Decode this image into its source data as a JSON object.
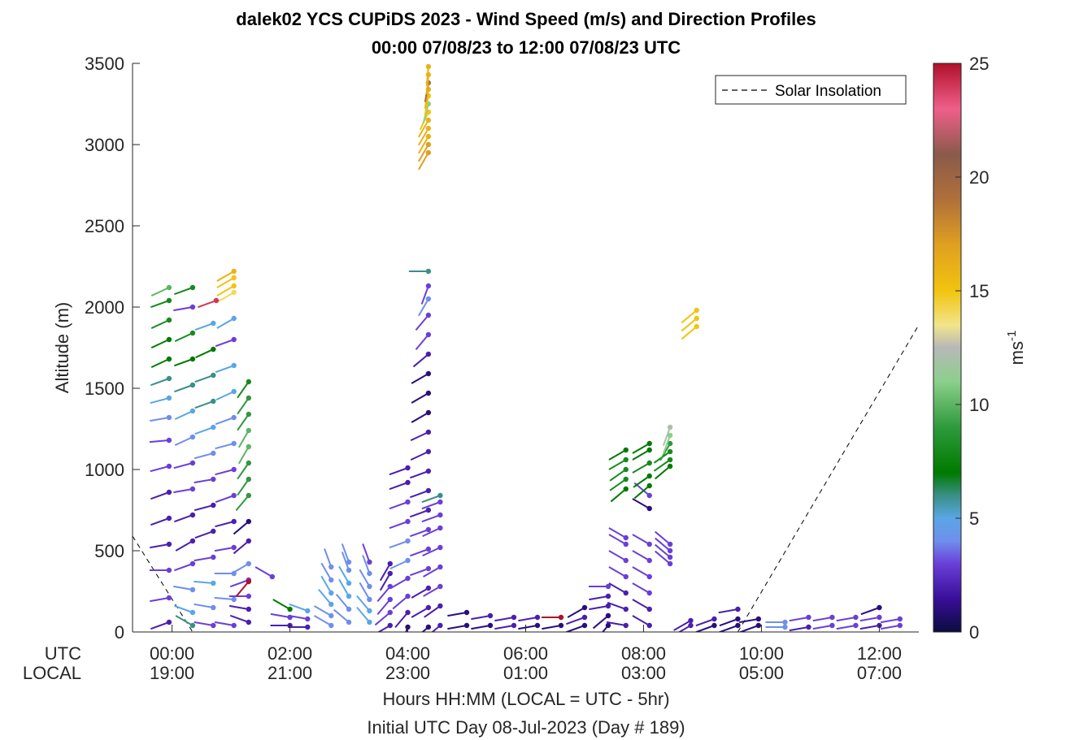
{
  "chart_data": {
    "type": "scatter",
    "title": "dalek02 YCS CUPiDS 2023 - Wind Speed (m/s) and Direction Profiles",
    "subtitle": "00:00 07/08/23 to 12:00 07/08/23  UTC",
    "xlabel": "Hours HH:MM  (LOCAL = UTC - 5hr)",
    "xlabel2": "Initial UTC Day 08-Jul-2023 (Day # 189)",
    "ylabel": "Altitude (m)",
    "ylim": [
      0,
      3500
    ],
    "xlim_hours": [
      -0.67,
      12.67
    ],
    "yticks": [
      0,
      500,
      1000,
      1500,
      2000,
      2500,
      3000,
      3500
    ],
    "xticks": [
      {
        "hour": 0,
        "utc": "00:00",
        "local": "19:00"
      },
      {
        "hour": 2,
        "utc": "02:00",
        "local": "21:00"
      },
      {
        "hour": 4,
        "utc": "04:00",
        "local": "23:00"
      },
      {
        "hour": 6,
        "utc": "06:00",
        "local": "01:00"
      },
      {
        "hour": 8,
        "utc": "08:00",
        "local": "03:00"
      },
      {
        "hour": 10,
        "utc": "10:00",
        "local": "05:00"
      },
      {
        "hour": 12,
        "utc": "12:00",
        "local": "07:00"
      }
    ],
    "row_labels": {
      "utc": "UTC",
      "local": "LOCAL"
    },
    "legend": {
      "entry": "Solar Insolation",
      "placement": "top-right"
    },
    "colorbar": {
      "label": "ms",
      "label_superscript": "-1",
      "range": [
        0,
        25
      ],
      "ticks": [
        0,
        5,
        10,
        15,
        20,
        25
      ],
      "stops": [
        {
          "v": 0,
          "c": "#0b0b3f"
        },
        {
          "v": 1.5,
          "c": "#3a0f9a"
        },
        {
          "v": 3,
          "c": "#6a3fd8"
        },
        {
          "v": 4,
          "c": "#6f8fec"
        },
        {
          "v": 5,
          "c": "#5aa6e6"
        },
        {
          "v": 6,
          "c": "#3a8f86"
        },
        {
          "v": 7,
          "c": "#007a00"
        },
        {
          "v": 9,
          "c": "#2e9a3c"
        },
        {
          "v": 11,
          "c": "#8bcf8b"
        },
        {
          "v": 12.5,
          "c": "#b8b8b8"
        },
        {
          "v": 13.5,
          "c": "#f2e58a"
        },
        {
          "v": 15,
          "c": "#f1c40f"
        },
        {
          "v": 17,
          "c": "#e0a020"
        },
        {
          "v": 19,
          "c": "#b0703a"
        },
        {
          "v": 21,
          "c": "#8a5a4a"
        },
        {
          "v": 23,
          "c": "#ef5f8a"
        },
        {
          "v": 25,
          "c": "#b0102a"
        }
      ]
    },
    "solar_insolation": {
      "style": "dashed",
      "segments": [
        [
          [
            -0.67,
            590
          ],
          [
            0.35,
            0
          ]
        ],
        [
          [
            9.6,
            0
          ],
          [
            12.67,
            1890
          ]
        ]
      ]
    },
    "profiles": [
      {
        "t": -0.05,
        "z": [
          60,
          210,
          380,
          540,
          700,
          860,
          1020,
          1180,
          1320,
          1440,
          1560,
          1680,
          1800,
          1920,
          2040,
          2120
        ],
        "s": [
          2,
          3,
          3,
          2,
          2,
          2,
          3,
          3,
          4,
          5,
          6,
          7,
          7,
          8,
          8,
          10
        ],
        "d": [
          250,
          260,
          270,
          260,
          250,
          250,
          255,
          265,
          260,
          255,
          250,
          245,
          245,
          245,
          250,
          245
        ]
      },
      {
        "t": 0.35,
        "z": [
          40,
          120,
          260,
          420,
          560,
          720,
          880,
          1040,
          1200,
          1360,
          1520,
          1680,
          1840,
          2000,
          2120
        ],
        "s": [
          6,
          5,
          4,
          3,
          2,
          2,
          3,
          3,
          4,
          5,
          6,
          7,
          8,
          3,
          8
        ],
        "d": [
          300,
          290,
          280,
          250,
          240,
          250,
          260,
          255,
          245,
          245,
          250,
          250,
          245,
          260,
          250
        ]
      },
      {
        "t": 0.7,
        "z": [
          40,
          150,
          300,
          460,
          620,
          780,
          940,
          1100,
          1260,
          1420,
          1580,
          1740,
          1900
        ],
        "s": [
          3,
          4,
          5,
          3,
          2,
          2,
          3,
          4,
          5,
          6,
          6,
          7,
          5
        ],
        "d": [
          280,
          280,
          275,
          260,
          250,
          255,
          260,
          255,
          250,
          250,
          250,
          245,
          250
        ]
      },
      {
        "t": 1.05,
        "z": [
          40,
          200,
          360,
          520,
          680,
          840,
          1000,
          1160,
          1320,
          1480,
          1640,
          1800,
          1930
        ],
        "s": [
          3,
          4,
          4,
          3,
          2,
          3,
          3,
          4,
          4,
          5,
          5,
          3,
          5
        ],
        "d": [
          280,
          275,
          270,
          260,
          255,
          250,
          255,
          255,
          250,
          245,
          250,
          250,
          240
        ]
      },
      {
        "t": 1.3,
        "z": [
          840,
          940,
          1040,
          1140,
          1240,
          1340,
          1440,
          1540
        ],
        "s": [
          9,
          9,
          9,
          10,
          10,
          9,
          9,
          8
        ],
        "d": [
          220,
          215,
          215,
          210,
          210,
          215,
          215,
          215
        ]
      },
      {
        "t": 1.3,
        "z": [
          60,
          140,
          220,
          320,
          420,
          560,
          680
        ],
        "s": [
          2,
          2,
          3,
          3,
          4,
          2,
          1
        ],
        "d": [
          290,
          280,
          270,
          250,
          240,
          230,
          230
        ]
      },
      {
        "t": 1.05,
        "z": [
          2090,
          2130,
          2180,
          2220
        ],
        "s": [
          14,
          15,
          15,
          16
        ],
        "d": [
          240,
          240,
          240,
          240
        ]
      },
      {
        "t": 0.75,
        "z": [
          2040
        ],
        "s": [
          24
        ],
        "d": [
          250
        ]
      },
      {
        "t": 1.3,
        "z": [
          310
        ],
        "s": [
          25
        ],
        "d": [
          220
        ]
      },
      {
        "t": 1.7,
        "z": [
          340
        ],
        "s": [
          3
        ],
        "d": [
          300
        ]
      },
      {
        "t": 2.0,
        "z": [
          40,
          90,
          140
        ],
        "s": [
          2,
          3,
          7
        ],
        "d": [
          270,
          280,
          300
        ]
      },
      {
        "t": 2.3,
        "z": [
          30,
          80,
          130
        ],
        "s": [
          2,
          3,
          5
        ],
        "d": [
          270,
          280,
          290
        ]
      },
      {
        "t": 2.7,
        "z": [
          40,
          100,
          170,
          240,
          320,
          400
        ],
        "s": [
          4,
          4,
          5,
          5,
          4,
          4
        ],
        "d": [
          300,
          300,
          320,
          330,
          330,
          340
        ]
      },
      {
        "t": 3.0,
        "z": [
          60,
          140,
          220,
          300,
          380,
          430
        ],
        "s": [
          4,
          4,
          5,
          5,
          4,
          4
        ],
        "d": [
          310,
          320,
          330,
          330,
          340,
          340
        ]
      },
      {
        "t": 3.35,
        "z": [
          60,
          130,
          200,
          280,
          360,
          430
        ],
        "s": [
          5,
          5,
          4,
          4,
          4,
          3
        ],
        "d": [
          320,
          320,
          330,
          330,
          340,
          340
        ]
      },
      {
        "t": 3.7,
        "z": [
          40,
          120,
          200,
          280,
          360,
          420
        ],
        "s": [
          2,
          3,
          3,
          3,
          2,
          2
        ],
        "d": [
          240,
          230,
          220,
          220,
          210,
          210
        ]
      },
      {
        "t": 4.0,
        "z": [
          30,
          120,
          220,
          330,
          440,
          560,
          680,
          800,
          920,
          1010
        ],
        "s": [
          1,
          2,
          3,
          3,
          4,
          4,
          3,
          3,
          2,
          2
        ],
        "d": [
          200,
          220,
          230,
          240,
          245,
          250,
          250,
          250,
          250,
          250
        ]
      },
      {
        "t": 4.35,
        "z": [
          30,
          150,
          270,
          390,
          510,
          630,
          750,
          870,
          990,
          1110,
          1230,
          1350,
          1470,
          1590,
          1710,
          1830,
          1950,
          2050,
          2130,
          2220
        ],
        "s": [
          1,
          2,
          2,
          3,
          3,
          3,
          2,
          2,
          2,
          2,
          2,
          1,
          1,
          1,
          2,
          3,
          3,
          4,
          3,
          6
        ],
        "d": [
          230,
          240,
          240,
          250,
          250,
          250,
          250,
          250,
          250,
          245,
          245,
          240,
          240,
          240,
          230,
          220,
          220,
          210,
          200,
          270
        ]
      },
      {
        "t": 4.35,
        "z": [
          2950,
          3000,
          3050,
          3100,
          3150,
          3200,
          3250,
          3300,
          3340,
          3380,
          3430,
          3480
        ],
        "s": [
          17,
          17,
          16,
          16,
          16,
          15,
          11,
          15,
          16,
          19,
          16,
          16
        ],
        "d": [
          210,
          210,
          210,
          210,
          210,
          205,
          195,
          190,
          190,
          190,
          185,
          185
        ]
      },
      {
        "t": 4.55,
        "z": [
          40,
          160,
          280,
          400,
          520,
          640,
          720,
          800,
          840
        ],
        "s": [
          2,
          2,
          3,
          3,
          3,
          3,
          3,
          3,
          6
        ],
        "d": [
          230,
          235,
          240,
          240,
          245,
          245,
          250,
          250,
          250
        ]
      },
      {
        "t": 5.0,
        "z": [
          40,
          120
        ],
        "s": [
          1,
          1
        ],
        "d": [
          260,
          260
        ]
      },
      {
        "t": 5.4,
        "z": [
          40,
          100
        ],
        "s": [
          1,
          2
        ],
        "d": [
          260,
          260
        ]
      },
      {
        "t": 5.8,
        "z": [
          40,
          90
        ],
        "s": [
          2,
          2
        ],
        "d": [
          260,
          260
        ]
      },
      {
        "t": 6.2,
        "z": [
          40,
          90
        ],
        "s": [
          1,
          2
        ],
        "d": [
          260,
          260
        ]
      },
      {
        "t": 6.6,
        "z": [
          40,
          90
        ],
        "s": [
          1,
          25
        ],
        "d": [
          260,
          270
        ]
      },
      {
        "t": 7.0,
        "z": [
          40,
          90,
          150
        ],
        "s": [
          1,
          2,
          1
        ],
        "d": [
          250,
          250,
          240
        ]
      },
      {
        "t": 7.4,
        "z": [
          40,
          100,
          160,
          220,
          280
        ],
        "s": [
          1,
          1,
          2,
          2,
          3
        ],
        "d": [
          220,
          230,
          260,
          260,
          270
        ]
      },
      {
        "t": 7.7,
        "z": [
          40,
          140,
          240,
          340,
          440,
          540,
          580
        ],
        "s": [
          2,
          2,
          2,
          3,
          3,
          3,
          3
        ],
        "d": [
          280,
          290,
          300,
          300,
          300,
          300,
          300
        ]
      },
      {
        "t": 7.7,
        "z": [
          880,
          940,
          1000,
          1060,
          1120
        ],
        "s": [
          7,
          8,
          8,
          8,
          7
        ],
        "d": [
          230,
          235,
          235,
          240,
          240
        ]
      },
      {
        "t": 8.1,
        "z": [
          40,
          140,
          240,
          340,
          440,
          540
        ],
        "s": [
          2,
          2,
          3,
          3,
          3,
          3
        ],
        "d": [
          300,
          300,
          300,
          300,
          300,
          300
        ]
      },
      {
        "t": 8.1,
        "z": [
          760,
          840,
          900,
          960,
          1040,
          1120,
          1160
        ],
        "s": [
          1,
          3,
          7,
          7,
          8,
          7,
          7
        ],
        "d": [
          300,
          310,
          230,
          235,
          240,
          240,
          240
        ]
      },
      {
        "t": 8.45,
        "z": [
          420,
          460,
          500,
          540
        ],
        "s": [
          3,
          3,
          3,
          3
        ],
        "d": [
          310,
          310,
          310,
          310
        ]
      },
      {
        "t": 8.45,
        "z": [
          1020,
          1060,
          1110,
          1160,
          1210,
          1260
        ],
        "s": [
          7,
          8,
          8,
          9,
          11,
          12
        ],
        "d": [
          230,
          235,
          235,
          210,
          200,
          200
        ]
      },
      {
        "t": 8.9,
        "z": [
          1880,
          1930,
          1980
        ],
        "s": [
          15,
          15,
          15
        ],
        "d": [
          230,
          230,
          230
        ]
      },
      {
        "t": 8.8,
        "z": [
          40,
          70
        ],
        "s": [
          2,
          2
        ],
        "d": [
          240,
          240
        ]
      },
      {
        "t": 9.2,
        "z": [
          40,
          80
        ],
        "s": [
          1,
          2
        ],
        "d": [
          250,
          250
        ]
      },
      {
        "t": 9.6,
        "z": [
          40,
          80,
          140
        ],
        "s": [
          1,
          1,
          2
        ],
        "d": [
          250,
          250,
          260
        ]
      },
      {
        "t": 9.95,
        "z": [
          40,
          80
        ],
        "s": [
          1,
          1
        ],
        "d": [
          250,
          260
        ]
      },
      {
        "t": 10.4,
        "z": [
          30,
          60
        ],
        "s": [
          4,
          4
        ],
        "d": [
          270,
          270
        ]
      },
      {
        "t": 10.8,
        "z": [
          30,
          90
        ],
        "s": [
          2,
          3
        ],
        "d": [
          260,
          260
        ]
      },
      {
        "t": 11.2,
        "z": [
          40,
          90
        ],
        "s": [
          3,
          3
        ],
        "d": [
          260,
          260
        ]
      },
      {
        "t": 11.6,
        "z": [
          40,
          90
        ],
        "s": [
          3,
          3
        ],
        "d": [
          260,
          260
        ]
      },
      {
        "t": 12.0,
        "z": [
          40,
          90,
          150
        ],
        "s": [
          2,
          3,
          1
        ],
        "d": [
          260,
          260,
          250
        ]
      },
      {
        "t": 12.35,
        "z": [
          40,
          80
        ],
        "s": [
          3,
          3
        ],
        "d": [
          260,
          260
        ]
      }
    ]
  }
}
